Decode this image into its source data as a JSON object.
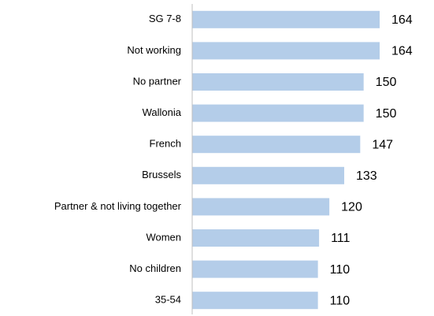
{
  "chart_data": {
    "type": "bar",
    "orientation": "horizontal",
    "categories": [
      "SG 7-8",
      "Not working",
      "No partner",
      "Wallonia",
      "French",
      "Brussels",
      "Partner & not living together",
      "Women",
      "No children",
      "35-54"
    ],
    "values": [
      164,
      164,
      150,
      150,
      147,
      133,
      120,
      111,
      110,
      110
    ],
    "color": "#b4cde9"
  }
}
